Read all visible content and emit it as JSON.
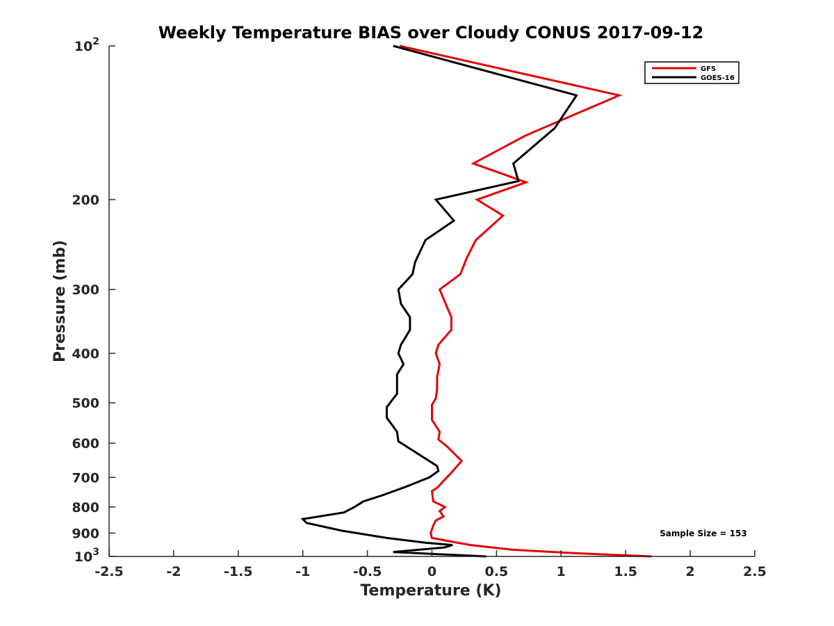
{
  "chart_data": {
    "type": "line",
    "title": "Weekly Temperature BIAS over Cloudy CONUS 2017-09-12",
    "xlabel": "Temperature (K)",
    "ylabel": "Pressure (mb)",
    "xlim": [
      -2.5,
      2.5
    ],
    "ylim": [
      100,
      1000
    ],
    "y_scale": "log",
    "y_reversed": true,
    "x_ticks": [
      "-2.5",
      "-2",
      "-1.5",
      "-1",
      "-0.5",
      "0",
      "0.5",
      "1",
      "1.5",
      "2",
      "2.5"
    ],
    "y_ticks": [
      {
        "value": 100,
        "base": "10",
        "exp": "2"
      },
      {
        "value": 200,
        "label": "200"
      },
      {
        "value": 300,
        "label": "300"
      },
      {
        "value": 400,
        "label": "400"
      },
      {
        "value": 500,
        "label": "500"
      },
      {
        "value": 600,
        "label": "600"
      },
      {
        "value": 700,
        "label": "700"
      },
      {
        "value": 800,
        "label": "800"
      },
      {
        "value": 900,
        "label": "900"
      },
      {
        "value": 1000,
        "base": "10",
        "exp": "3"
      }
    ],
    "legend_position": "top-right",
    "annotation": "Sample Size = 153",
    "series": [
      {
        "name": "GFS",
        "color": "#e50000",
        "points": [
          [
            -0.25,
            100
          ],
          [
            1.45,
            125
          ],
          [
            0.72,
            150
          ],
          [
            0.32,
            170
          ],
          [
            0.73,
            185
          ],
          [
            0.35,
            200
          ],
          [
            0.55,
            215
          ],
          [
            0.34,
            240
          ],
          [
            0.27,
            260
          ],
          [
            0.22,
            280
          ],
          [
            0.06,
            300
          ],
          [
            0.15,
            340
          ],
          [
            0.15,
            360
          ],
          [
            0.05,
            385
          ],
          [
            0.03,
            400
          ],
          [
            0.06,
            420
          ],
          [
            0.04,
            445
          ],
          [
            0.04,
            470
          ],
          [
            0.03,
            490
          ],
          [
            0.0,
            505
          ],
          [
            0.0,
            540
          ],
          [
            0.06,
            570
          ],
          [
            0.05,
            590
          ],
          [
            0.12,
            610
          ],
          [
            0.23,
            650
          ],
          [
            0.14,
            690
          ],
          [
            0.08,
            715
          ],
          [
            0.05,
            730
          ],
          [
            0.0,
            745
          ],
          [
            0.01,
            780
          ],
          [
            0.1,
            800
          ],
          [
            0.06,
            815
          ],
          [
            0.09,
            835
          ],
          [
            0.03,
            850
          ],
          [
            0.01,
            870
          ],
          [
            -0.01,
            900
          ],
          [
            0.0,
            920
          ],
          [
            0.15,
            935
          ],
          [
            0.3,
            950
          ],
          [
            0.62,
            970
          ],
          [
            1.1,
            985
          ],
          [
            1.7,
            1000
          ]
        ]
      },
      {
        "name": "GOES-16",
        "color": "#000000",
        "points": [
          [
            -0.3,
            100
          ],
          [
            1.12,
            125
          ],
          [
            0.95,
            145
          ],
          [
            0.63,
            170
          ],
          [
            0.67,
            184
          ],
          [
            0.03,
            200
          ],
          [
            0.17,
            220
          ],
          [
            -0.05,
            240
          ],
          [
            -0.13,
            265
          ],
          [
            -0.15,
            280
          ],
          [
            -0.26,
            300
          ],
          [
            -0.24,
            320
          ],
          [
            -0.17,
            340
          ],
          [
            -0.17,
            360
          ],
          [
            -0.24,
            385
          ],
          [
            -0.26,
            400
          ],
          [
            -0.22,
            420
          ],
          [
            -0.27,
            440
          ],
          [
            -0.27,
            480
          ],
          [
            -0.35,
            510
          ],
          [
            -0.35,
            535
          ],
          [
            -0.27,
            570
          ],
          [
            -0.26,
            595
          ],
          [
            0.04,
            665
          ],
          [
            0.05,
            680
          ],
          [
            -0.02,
            700
          ],
          [
            -0.2,
            730
          ],
          [
            -0.39,
            760
          ],
          [
            -0.53,
            780
          ],
          [
            -0.6,
            800
          ],
          [
            -0.68,
            820
          ],
          [
            -1.0,
            845
          ],
          [
            -0.97,
            860
          ],
          [
            -0.7,
            890
          ],
          [
            -0.35,
            920
          ],
          [
            -0.05,
            940
          ],
          [
            0.16,
            950
          ],
          [
            0.1,
            960
          ],
          [
            -0.3,
            980
          ],
          [
            0.42,
            1000
          ]
        ]
      }
    ]
  }
}
